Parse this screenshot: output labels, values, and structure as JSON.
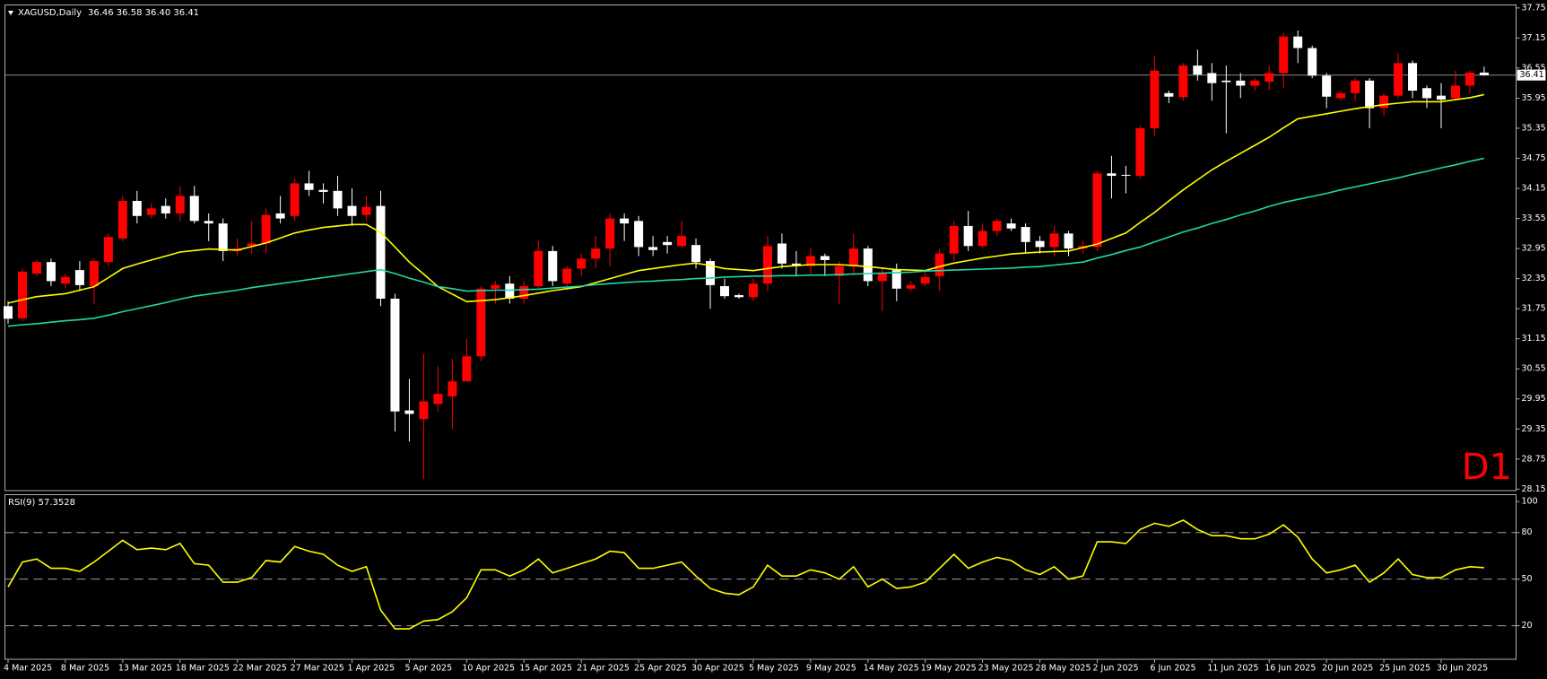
{
  "chart_data": [
    {
      "type": "candlestick",
      "title": "XAGUSD,Daily",
      "subtitle": "36.46 36.58 36.40 36.41",
      "annotation": "D1",
      "categories": [
        "4 Mar 2025",
        null,
        null,
        null,
        "8 Mar 2025",
        null,
        null,
        null,
        "13 Mar 2025",
        null,
        null,
        null,
        "18 Mar 2025",
        null,
        null,
        null,
        "22 Mar 2025",
        null,
        null,
        null,
        "27 Mar 2025",
        null,
        null,
        null,
        "1 Apr 2025",
        null,
        null,
        null,
        "5 Apr 2025",
        null,
        null,
        null,
        "10 Apr 2025",
        null,
        null,
        null,
        "15 Apr 2025",
        null,
        null,
        null,
        "21 Apr 2025",
        null,
        null,
        null,
        "25 Apr 2025",
        null,
        null,
        null,
        "30 Apr 2025",
        null,
        null,
        null,
        "5 May 2025",
        null,
        null,
        null,
        "9 May 2025",
        null,
        null,
        null,
        "14 May 2025",
        null,
        null,
        null,
        "19 May 2025",
        null,
        null,
        null,
        "23 May 2025",
        null,
        null,
        null,
        "28 May 2025",
        null,
        null,
        null,
        "2 Jun 2025",
        null,
        null,
        null,
        "6 Jun 2025",
        null,
        null,
        null,
        "11 Jun 2025",
        null,
        null,
        null,
        "16 Jun 2025",
        null,
        null,
        null,
        "20 Jun 2025",
        null,
        null,
        null,
        "25 Jun 2025",
        null,
        null,
        null,
        "30 Jun 2025",
        null,
        null,
        null
      ],
      "open": [
        31.8,
        31.56,
        32.45,
        32.68,
        32.25,
        32.52,
        32.2,
        32.68,
        33.15,
        33.9,
        33.62,
        33.8,
        33.65,
        34.0,
        33.5,
        33.45,
        32.9,
        33.0,
        33.05,
        33.65,
        33.6,
        34.25,
        34.12,
        34.1,
        33.8,
        33.62,
        33.8,
        31.95,
        29.72,
        29.55,
        29.85,
        30.0,
        30.3,
        30.8,
        32.15,
        32.25,
        31.95,
        32.2,
        32.9,
        32.25,
        32.55,
        32.75,
        32.95,
        33.55,
        33.5,
        32.98,
        33.08,
        33.0,
        33.02,
        32.7,
        32.2,
        32.02,
        31.98,
        32.25,
        33.05,
        32.65,
        32.6,
        32.8,
        32.4,
        32.6,
        32.95,
        32.3,
        32.52,
        32.15,
        32.25,
        32.4,
        32.85,
        33.4,
        33.0,
        33.3,
        33.45,
        33.38,
        33.1,
        32.98,
        33.25,
        32.95,
        32.98,
        34.45,
        34.42,
        34.4,
        35.35,
        36.05,
        35.97,
        36.6,
        36.45,
        36.3,
        36.3,
        36.2,
        36.28,
        36.45,
        37.18,
        36.95,
        36.4,
        35.95,
        36.05,
        36.3,
        35.75,
        36.0,
        36.65,
        36.15,
        36.0,
        35.95,
        36.2,
        36.46
      ],
      "high": [
        31.9,
        32.55,
        32.72,
        32.75,
        32.45,
        32.7,
        32.75,
        33.25,
        34.0,
        34.1,
        33.85,
        33.95,
        34.2,
        34.2,
        33.65,
        33.55,
        33.15,
        33.5,
        33.75,
        34.0,
        34.35,
        34.5,
        34.25,
        34.4,
        34.15,
        34.0,
        34.1,
        32.05,
        30.35,
        30.85,
        30.6,
        30.75,
        31.15,
        32.2,
        32.3,
        32.4,
        32.3,
        33.1,
        33.0,
        32.6,
        32.85,
        33.2,
        33.65,
        33.65,
        33.6,
        33.2,
        33.2,
        33.5,
        33.15,
        32.75,
        32.35,
        32.05,
        32.35,
        33.2,
        33.25,
        32.9,
        32.95,
        32.85,
        32.7,
        33.25,
        33.0,
        32.55,
        32.65,
        32.3,
        32.5,
        32.95,
        33.5,
        33.7,
        33.45,
        33.55,
        33.55,
        33.45,
        33.2,
        33.4,
        33.3,
        33.1,
        34.5,
        34.8,
        34.6,
        35.4,
        36.8,
        36.1,
        36.65,
        36.92,
        36.65,
        36.6,
        36.45,
        36.35,
        36.6,
        37.25,
        37.3,
        37.0,
        36.45,
        36.1,
        36.35,
        36.35,
        36.05,
        36.85,
        36.7,
        36.2,
        36.25,
        36.5,
        36.5,
        36.58
      ],
      "low": [
        31.45,
        31.5,
        32.4,
        32.2,
        32.15,
        32.1,
        31.85,
        32.6,
        33.1,
        33.45,
        33.55,
        33.55,
        33.5,
        33.45,
        33.1,
        32.7,
        32.8,
        32.85,
        32.85,
        33.45,
        33.5,
        34.0,
        33.85,
        33.6,
        33.4,
        33.5,
        31.8,
        29.3,
        29.1,
        28.35,
        29.7,
        29.35,
        30.3,
        30.7,
        31.85,
        31.85,
        31.85,
        32.15,
        32.2,
        32.15,
        32.4,
        32.55,
        32.6,
        33.1,
        32.8,
        32.8,
        32.85,
        32.95,
        32.55,
        31.75,
        31.95,
        31.95,
        31.9,
        32.1,
        32.55,
        32.4,
        32.45,
        32.4,
        31.85,
        32.45,
        32.2,
        31.7,
        31.9,
        32.1,
        32.2,
        32.1,
        32.7,
        32.9,
        32.95,
        33.2,
        33.3,
        32.85,
        32.85,
        32.8,
        32.8,
        32.85,
        32.9,
        33.95,
        34.05,
        34.35,
        35.2,
        35.85,
        35.9,
        36.3,
        35.9,
        35.25,
        35.95,
        36.1,
        36.1,
        36.15,
        36.65,
        36.35,
        35.75,
        35.9,
        35.9,
        35.35,
        35.6,
        35.95,
        35.95,
        35.75,
        35.35,
        35.9,
        36.05,
        36.4
      ],
      "close": [
        31.55,
        32.49,
        32.68,
        32.3,
        32.38,
        32.22,
        32.7,
        33.18,
        33.9,
        33.6,
        33.75,
        33.65,
        34.0,
        33.5,
        33.45,
        32.9,
        32.95,
        33.05,
        33.62,
        33.55,
        34.25,
        34.12,
        34.08,
        33.75,
        33.6,
        33.78,
        31.95,
        29.7,
        29.65,
        29.9,
        30.05,
        30.3,
        30.8,
        32.15,
        32.22,
        31.95,
        32.2,
        32.9,
        32.3,
        32.55,
        32.75,
        32.95,
        33.55,
        33.45,
        32.98,
        32.92,
        33.02,
        33.2,
        32.68,
        32.22,
        32.0,
        31.98,
        32.25,
        33.0,
        32.65,
        32.6,
        32.8,
        32.72,
        32.6,
        32.95,
        32.3,
        32.45,
        32.15,
        32.22,
        32.38,
        32.85,
        33.4,
        33.0,
        33.3,
        33.5,
        33.35,
        33.08,
        32.98,
        33.25,
        32.95,
        33.0,
        34.45,
        34.4,
        34.41,
        35.35,
        36.5,
        35.98,
        36.6,
        36.42,
        36.25,
        36.27,
        36.2,
        36.3,
        36.45,
        37.18,
        36.95,
        36.4,
        35.98,
        36.05,
        36.3,
        35.75,
        36.0,
        36.65,
        36.1,
        35.95,
        35.92,
        36.2,
        36.46,
        36.41
      ],
      "bull_color": "#ff0000",
      "bear_color": "#ffffff",
      "series": [
        {
          "color": "#ffff00",
          "values": [
            31.86,
            31.93,
            31.99,
            32.02,
            32.05,
            32.12,
            32.19,
            32.37,
            32.55,
            32.64,
            32.72,
            32.8,
            32.88,
            32.91,
            32.94,
            32.93,
            32.92,
            32.99,
            33.06,
            33.16,
            33.26,
            33.32,
            33.37,
            33.4,
            33.43,
            33.43,
            33.27,
            32.98,
            32.68,
            32.44,
            32.19,
            32.04,
            31.89,
            31.91,
            31.93,
            31.97,
            32.01,
            32.06,
            32.11,
            32.15,
            32.19,
            32.27,
            32.35,
            32.43,
            32.51,
            32.55,
            32.59,
            32.63,
            32.66,
            32.61,
            32.55,
            32.53,
            32.51,
            32.55,
            32.59,
            32.61,
            32.63,
            32.63,
            32.63,
            32.61,
            32.59,
            32.56,
            32.53,
            32.52,
            32.51,
            32.59,
            32.66,
            32.71,
            32.76,
            32.8,
            32.84,
            32.86,
            32.88,
            32.89,
            32.9,
            32.97,
            33.04,
            33.15,
            33.26,
            33.47,
            33.67,
            33.9,
            34.12,
            34.32,
            34.52,
            34.69,
            34.85,
            35.01,
            35.17,
            35.36,
            35.54,
            35.59,
            35.64,
            35.69,
            35.74,
            35.78,
            35.82,
            35.85,
            35.88,
            35.88,
            35.88,
            35.92,
            35.96,
            36.02
          ]
        },
        {
          "color": "#20d8a8",
          "values": [
            31.4,
            31.43,
            31.45,
            31.48,
            31.51,
            31.53,
            31.56,
            31.62,
            31.69,
            31.75,
            31.81,
            31.87,
            31.94,
            32.0,
            32.04,
            32.08,
            32.12,
            32.17,
            32.21,
            32.25,
            32.29,
            32.33,
            32.37,
            32.41,
            32.45,
            32.49,
            32.53,
            32.45,
            32.36,
            32.28,
            32.19,
            32.15,
            32.1,
            32.11,
            32.12,
            32.12,
            32.13,
            32.14,
            32.16,
            32.18,
            32.2,
            32.23,
            32.25,
            32.27,
            32.29,
            32.3,
            32.32,
            32.33,
            32.35,
            32.36,
            32.38,
            32.39,
            32.4,
            32.4,
            32.41,
            32.41,
            32.42,
            32.42,
            32.43,
            32.44,
            32.45,
            32.46,
            32.47,
            32.48,
            32.5,
            32.51,
            32.52,
            32.53,
            32.54,
            32.55,
            32.56,
            32.58,
            32.59,
            32.62,
            32.65,
            32.68,
            32.76,
            32.83,
            32.91,
            32.98,
            33.08,
            33.18,
            33.28,
            33.36,
            33.45,
            33.53,
            33.62,
            33.7,
            33.79,
            33.87,
            33.93,
            33.99,
            34.05,
            34.12,
            34.18,
            34.24,
            34.3,
            34.36,
            34.43,
            34.49,
            34.56,
            34.62,
            34.69,
            34.75
          ]
        }
      ],
      "current_price": 36.41,
      "ylim": [
        28.12,
        37.81
      ],
      "yticks": [
        37.75,
        37.15,
        36.55,
        35.95,
        35.35,
        34.75,
        34.15,
        33.55,
        32.95,
        32.35,
        31.75,
        31.15,
        30.55,
        29.95,
        29.35,
        28.75,
        28.15
      ]
    },
    {
      "type": "line",
      "title": "RSI(9) 57.3528",
      "color": "#ffff00",
      "values": [
        45,
        61,
        63,
        57,
        57,
        55,
        61,
        68,
        75,
        69,
        70,
        69,
        73,
        60,
        59,
        48,
        48,
        51,
        62,
        61,
        71,
        68,
        66,
        59,
        55,
        58,
        30,
        18,
        18,
        23,
        24,
        29,
        38,
        56,
        56,
        52,
        56,
        63,
        54,
        57,
        60,
        63,
        68,
        67,
        57,
        57,
        59,
        61,
        52,
        44,
        41,
        40,
        45,
        59,
        52,
        52,
        56,
        54,
        50,
        58,
        45,
        50,
        44,
        45,
        48,
        57,
        66,
        57,
        61,
        64,
        62,
        56,
        53,
        58,
        50,
        52,
        74,
        74,
        73,
        82,
        86,
        84,
        88,
        82,
        78,
        78,
        76,
        76,
        79,
        85,
        77,
        63,
        54,
        56,
        59,
        48,
        54,
        63,
        53,
        51,
        51,
        56,
        58,
        57.35
      ],
      "ylim": [
        -1.6,
        104.4
      ],
      "yticks": [
        100,
        80,
        50,
        20
      ],
      "levels": [
        80,
        50,
        20
      ]
    }
  ]
}
